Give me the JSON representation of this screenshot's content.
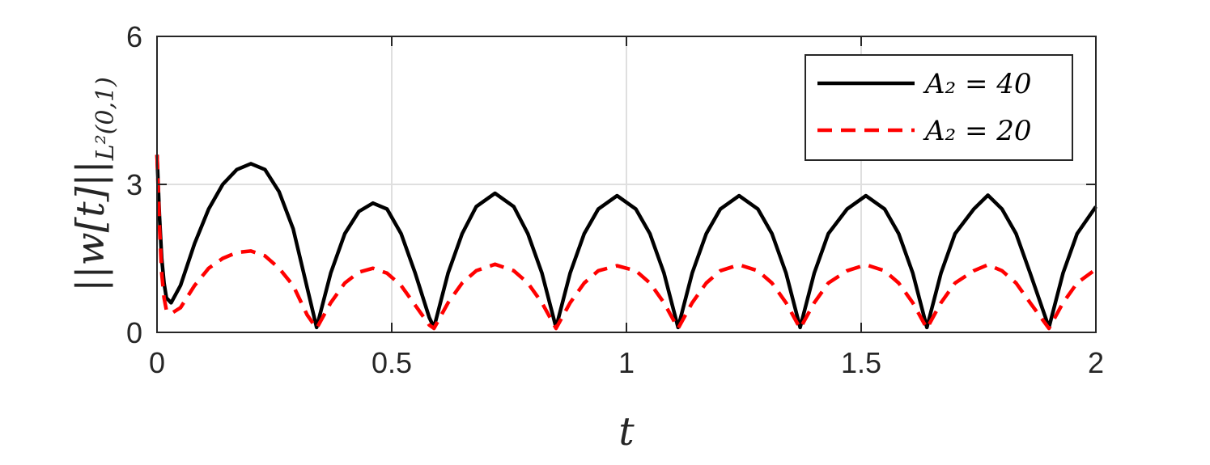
{
  "chart_data": {
    "type": "line",
    "xlabel": "t",
    "ylabel": "||w[t]||",
    "ylabel_sub": "L²(0,1)",
    "xlim": [
      0,
      2
    ],
    "ylim": [
      0,
      6
    ],
    "xticks": [
      0,
      0.5,
      1,
      1.5,
      2
    ],
    "xtick_labels": [
      "0",
      "0.5",
      "1",
      "1.5",
      "2"
    ],
    "yticks": [
      0,
      3,
      6
    ],
    "ytick_labels": [
      "0",
      "3",
      "6"
    ],
    "grid": true,
    "legend": "top-right",
    "series": [
      {
        "name": "A₂ = 40",
        "color": "#000000",
        "style": "solid",
        "x": [
          0,
          0.005,
          0.01,
          0.015,
          0.02,
          0.03,
          0.05,
          0.08,
          0.11,
          0.14,
          0.17,
          0.2,
          0.23,
          0.26,
          0.29,
          0.32,
          0.34,
          0.37,
          0.4,
          0.43,
          0.46,
          0.49,
          0.52,
          0.55,
          0.58,
          0.59,
          0.62,
          0.65,
          0.68,
          0.72,
          0.76,
          0.79,
          0.82,
          0.85,
          0.88,
          0.91,
          0.94,
          0.98,
          1.02,
          1.05,
          1.08,
          1.11,
          1.14,
          1.17,
          1.2,
          1.24,
          1.28,
          1.31,
          1.34,
          1.37,
          1.4,
          1.43,
          1.47,
          1.51,
          1.55,
          1.58,
          1.61,
          1.64,
          1.67,
          1.7,
          1.74,
          1.77,
          1.8,
          1.83,
          1.86,
          1.9,
          1.93,
          1.96,
          2.0
        ],
        "y": [
          3.6,
          2.4,
          1.5,
          1.0,
          0.7,
          0.6,
          0.95,
          1.8,
          2.5,
          3.0,
          3.3,
          3.42,
          3.3,
          2.85,
          2.1,
          0.9,
          0.1,
          1.2,
          2.0,
          2.45,
          2.62,
          2.5,
          2.0,
          1.2,
          0.3,
          0.1,
          1.2,
          2.0,
          2.55,
          2.82,
          2.55,
          2.0,
          1.2,
          0.1,
          1.2,
          2.0,
          2.5,
          2.77,
          2.5,
          2.0,
          1.2,
          0.1,
          1.2,
          2.0,
          2.5,
          2.77,
          2.5,
          2.0,
          1.2,
          0.1,
          1.2,
          2.0,
          2.5,
          2.77,
          2.5,
          2.0,
          1.2,
          0.1,
          1.2,
          2.0,
          2.5,
          2.78,
          2.5,
          2.0,
          1.2,
          0.1,
          1.2,
          2.0,
          2.55
        ]
      },
      {
        "name": "A₂ = 20",
        "color": "#ff0000",
        "style": "dashed",
        "x": [
          0,
          0.005,
          0.01,
          0.015,
          0.02,
          0.03,
          0.05,
          0.08,
          0.11,
          0.14,
          0.17,
          0.2,
          0.23,
          0.26,
          0.29,
          0.32,
          0.34,
          0.37,
          0.4,
          0.43,
          0.46,
          0.49,
          0.52,
          0.55,
          0.58,
          0.59,
          0.62,
          0.65,
          0.68,
          0.72,
          0.76,
          0.79,
          0.82,
          0.85,
          0.88,
          0.91,
          0.94,
          0.98,
          1.02,
          1.05,
          1.08,
          1.11,
          1.14,
          1.17,
          1.2,
          1.24,
          1.28,
          1.31,
          1.34,
          1.37,
          1.4,
          1.43,
          1.47,
          1.51,
          1.55,
          1.58,
          1.61,
          1.64,
          1.67,
          1.7,
          1.74,
          1.77,
          1.8,
          1.83,
          1.86,
          1.9,
          1.93,
          1.96,
          2.0
        ],
        "y": [
          3.6,
          2.2,
          1.2,
          0.7,
          0.45,
          0.38,
          0.5,
          0.95,
          1.3,
          1.5,
          1.62,
          1.65,
          1.55,
          1.3,
          0.95,
          0.35,
          0.08,
          0.6,
          1.0,
          1.22,
          1.3,
          1.2,
          0.95,
          0.55,
          0.15,
          0.08,
          0.6,
          1.0,
          1.25,
          1.38,
          1.25,
          1.0,
          0.6,
          0.08,
          0.6,
          1.0,
          1.25,
          1.35,
          1.25,
          1.0,
          0.6,
          0.08,
          0.6,
          1.0,
          1.25,
          1.37,
          1.25,
          1.0,
          0.6,
          0.08,
          0.6,
          1.0,
          1.25,
          1.37,
          1.25,
          1.0,
          0.6,
          0.08,
          0.6,
          1.0,
          1.25,
          1.37,
          1.25,
          1.0,
          0.6,
          0.08,
          0.6,
          1.0,
          1.28
        ]
      }
    ]
  }
}
